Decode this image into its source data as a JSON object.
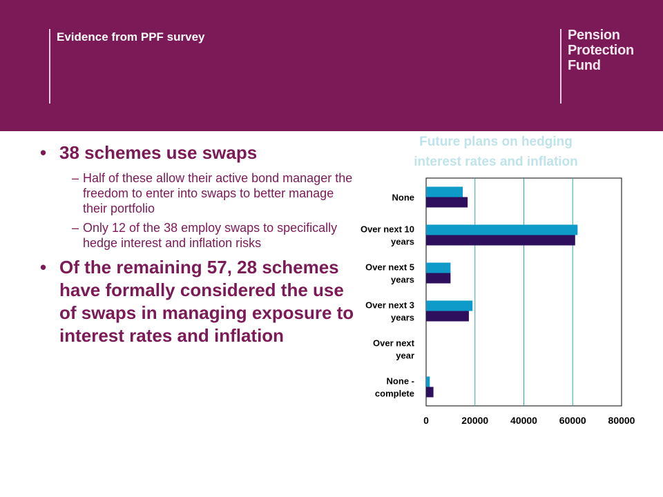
{
  "header": {
    "title": "Evidence from PPF survey",
    "logo_lines": [
      "Pension",
      "Protection",
      "Fund"
    ]
  },
  "bullets": [
    {
      "text": "38 schemes use swaps",
      "subs": [
        "Half of these allow their active bond manager the freedom to enter into swaps to better manage their portfolio",
        "Only 12 of the 38 employ swaps to specifically hedge interest and inflation risks"
      ]
    },
    {
      "text": "Of the remaining 57, 28 schemes have formally considered the use of swaps in managing exposure to interest rates and inflation",
      "subs": []
    }
  ],
  "chart_data": {
    "type": "bar",
    "orientation": "horizontal",
    "title": "Future plans on hedging interest rates and inflation",
    "categories": [
      "None",
      "Over next 10 years",
      "Over next 5 years",
      "Over next 3 years",
      "Over next year",
      "None - complete"
    ],
    "category_lines": [
      [
        "None"
      ],
      [
        "Over next 10",
        "years"
      ],
      [
        "Over next 5",
        "years"
      ],
      [
        "Over next 3",
        "years"
      ],
      [
        "Over next",
        "year"
      ],
      [
        "None -",
        "complete"
      ]
    ],
    "series": [
      {
        "values": [
          15000,
          62000,
          10000,
          19000,
          0,
          1500
        ],
        "color": "#0f9bc9"
      },
      {
        "values": [
          17000,
          61000,
          10000,
          17500,
          0,
          3000
        ],
        "color": "#2e0f5e"
      }
    ],
    "xlim": [
      0,
      80000
    ],
    "xticks": [
      "0",
      "20000",
      "40000",
      "60000",
      "80000"
    ],
    "grid": true,
    "legend": "none",
    "title_color": "#bfe3ea",
    "grid_color": "#2aa7a3"
  }
}
